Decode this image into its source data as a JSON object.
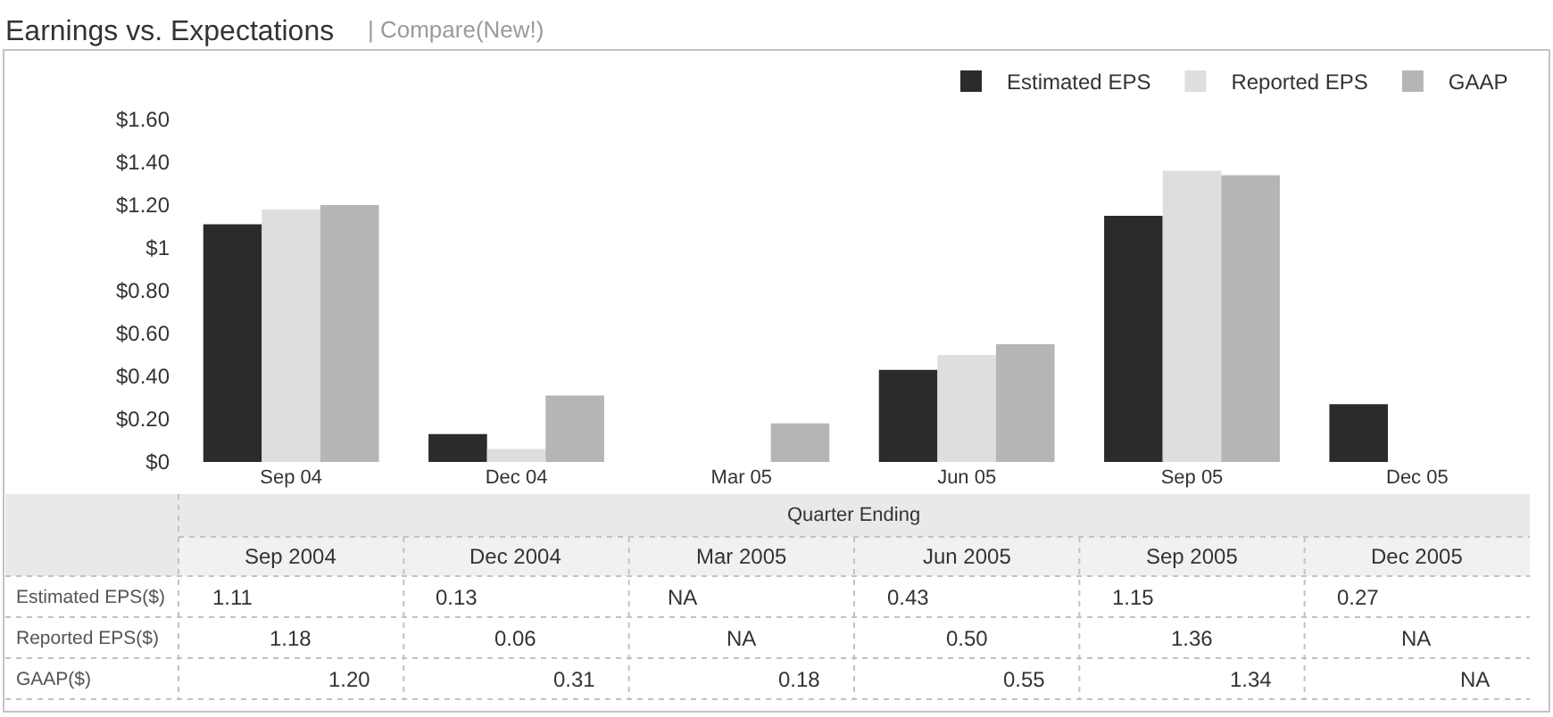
{
  "chart_data": {
    "type": "bar",
    "title": "Earnings vs. Expectations",
    "subtitle": "| Compare(New!)",
    "categories": [
      "Sep 04",
      "Dec 04",
      "Mar 05",
      "Jun 05",
      "Sep 05",
      "Dec 05"
    ],
    "series": [
      {
        "name": "Estimated EPS",
        "color": "#2b2b2b",
        "values": [
          1.11,
          0.13,
          null,
          0.43,
          1.15,
          0.27
        ],
        "value_labels": [
          "1.11",
          "0.13",
          "NA",
          "0.43",
          "1.15",
          "0.27"
        ]
      },
      {
        "name": "Reported EPS",
        "color": "#dedede",
        "values": [
          1.18,
          0.06,
          null,
          0.5,
          1.36,
          null
        ],
        "value_labels": [
          "1.18",
          "0.06",
          "NA",
          "0.50",
          "1.36",
          "NA"
        ]
      },
      {
        "name": "GAAP",
        "color": "#b5b5b5",
        "values": [
          1.2,
          0.31,
          0.18,
          0.55,
          1.34,
          null
        ],
        "value_labels": [
          "1.20",
          "0.31",
          "0.18",
          "0.55",
          "1.34",
          "NA"
        ]
      }
    ],
    "ylim": [
      0,
      1.6
    ],
    "yticks": [
      {
        "value": 0,
        "label": "$0"
      },
      {
        "value": 0.2,
        "label": "$0.20"
      },
      {
        "value": 0.4,
        "label": "$0.40"
      },
      {
        "value": 0.6,
        "label": "$0.60"
      },
      {
        "value": 0.8,
        "label": "$0.80"
      },
      {
        "value": 1,
        "label": "$1"
      },
      {
        "value": 1.2,
        "label": "$1.20"
      },
      {
        "value": 1.4,
        "label": "$1.40"
      },
      {
        "value": 1.6,
        "label": "$1.60"
      }
    ],
    "grid": false,
    "legend": "top right",
    "annotations": [
      "Quarter Ending",
      "Sep 2004",
      "Dec 2004",
      "Mar 2005",
      "Jun 2005",
      "Sep 2005",
      "Dec 2005",
      "Estimated EPS($)",
      "Reported EPS($)",
      "GAAP($)"
    ]
  }
}
